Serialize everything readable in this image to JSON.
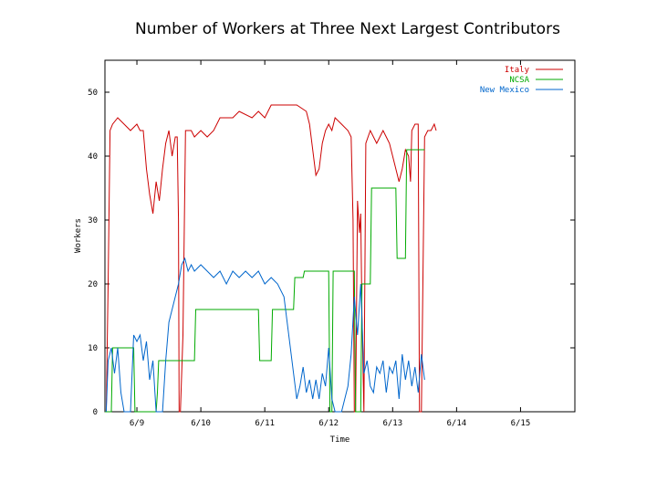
{
  "chart_data": {
    "type": "line",
    "title": "Number of Workers at Three Next Largest Contributors",
    "xlabel": "Time",
    "ylabel": "Workers",
    "ylim": [
      0,
      55
    ],
    "xlim": [
      8.5,
      15.85
    ],
    "yticks": [
      0,
      10,
      20,
      30,
      40,
      50
    ],
    "xticks": [
      {
        "v": 9,
        "label": "6/9"
      },
      {
        "v": 10,
        "label": "6/10"
      },
      {
        "v": 11,
        "label": "6/11"
      },
      {
        "v": 12,
        "label": "6/12"
      },
      {
        "v": 13,
        "label": "6/13"
      },
      {
        "v": 14,
        "label": "6/14"
      },
      {
        "v": 15,
        "label": "6/15"
      }
    ],
    "legend_position": "top-right",
    "grid": false,
    "series": [
      {
        "name": "Italy",
        "color": "#cc0000",
        "points": [
          [
            8.52,
            0
          ],
          [
            8.55,
            20
          ],
          [
            8.58,
            44
          ],
          [
            8.62,
            45
          ],
          [
            8.7,
            46
          ],
          [
            8.8,
            45
          ],
          [
            8.9,
            44
          ],
          [
            9.0,
            45
          ],
          [
            9.05,
            44
          ],
          [
            9.1,
            44
          ],
          [
            9.15,
            38
          ],
          [
            9.2,
            34
          ],
          [
            9.25,
            31
          ],
          [
            9.3,
            36
          ],
          [
            9.35,
            33
          ],
          [
            9.4,
            38
          ],
          [
            9.45,
            42
          ],
          [
            9.5,
            44
          ],
          [
            9.55,
            40
          ],
          [
            9.6,
            43
          ],
          [
            9.63,
            43
          ],
          [
            9.65,
            30
          ],
          [
            9.66,
            0
          ],
          [
            9.68,
            0
          ],
          [
            9.72,
            12
          ],
          [
            9.76,
            44
          ],
          [
            9.85,
            44
          ],
          [
            9.9,
            43
          ],
          [
            10.0,
            44
          ],
          [
            10.1,
            43
          ],
          [
            10.2,
            44
          ],
          [
            10.3,
            46
          ],
          [
            10.5,
            46
          ],
          [
            10.6,
            47
          ],
          [
            10.8,
            46
          ],
          [
            10.9,
            47
          ],
          [
            11.0,
            46
          ],
          [
            11.1,
            48
          ],
          [
            11.3,
            48
          ],
          [
            11.5,
            48
          ],
          [
            11.65,
            47
          ],
          [
            11.7,
            45
          ],
          [
            11.75,
            41
          ],
          [
            11.8,
            37
          ],
          [
            11.85,
            38
          ],
          [
            11.9,
            42
          ],
          [
            11.95,
            44
          ],
          [
            12.0,
            45
          ],
          [
            12.05,
            44
          ],
          [
            12.1,
            46
          ],
          [
            12.2,
            45
          ],
          [
            12.3,
            44
          ],
          [
            12.35,
            43
          ],
          [
            12.38,
            30
          ],
          [
            12.4,
            0
          ],
          [
            12.42,
            0
          ],
          [
            12.45,
            33
          ],
          [
            12.48,
            28
          ],
          [
            12.5,
            31
          ],
          [
            12.52,
            15
          ],
          [
            12.55,
            0
          ],
          [
            12.58,
            42
          ],
          [
            12.65,
            44
          ],
          [
            12.75,
            42
          ],
          [
            12.85,
            44
          ],
          [
            12.9,
            43
          ],
          [
            12.95,
            42
          ],
          [
            13.0,
            40
          ],
          [
            13.05,
            38
          ],
          [
            13.1,
            36
          ],
          [
            13.15,
            38
          ],
          [
            13.2,
            41
          ],
          [
            13.25,
            40
          ],
          [
            13.28,
            36
          ],
          [
            13.3,
            44
          ],
          [
            13.35,
            45
          ],
          [
            13.4,
            45
          ],
          [
            13.42,
            0
          ],
          [
            13.45,
            0
          ],
          [
            13.5,
            43
          ],
          [
            13.55,
            44
          ],
          [
            13.6,
            44
          ],
          [
            13.65,
            45
          ],
          [
            13.68,
            44
          ]
        ]
      },
      {
        "name": "NCSA",
        "color": "#00aa00",
        "points": [
          [
            8.5,
            0
          ],
          [
            8.6,
            0
          ],
          [
            8.62,
            10
          ],
          [
            8.95,
            10
          ],
          [
            8.97,
            0
          ],
          [
            9.3,
            0
          ],
          [
            9.32,
            3
          ],
          [
            9.34,
            8
          ],
          [
            9.9,
            8
          ],
          [
            9.92,
            16
          ],
          [
            10.9,
            16
          ],
          [
            10.92,
            8
          ],
          [
            11.1,
            8
          ],
          [
            11.12,
            16
          ],
          [
            11.45,
            16
          ],
          [
            11.47,
            21
          ],
          [
            11.6,
            21
          ],
          [
            11.62,
            22
          ],
          [
            11.8,
            22
          ],
          [
            11.82,
            22
          ],
          [
            12.0,
            22
          ],
          [
            12.02,
            0
          ],
          [
            12.05,
            0
          ],
          [
            12.07,
            22
          ],
          [
            12.4,
            22
          ],
          [
            12.42,
            0
          ],
          [
            12.5,
            0
          ],
          [
            12.52,
            20
          ],
          [
            12.65,
            20
          ],
          [
            12.67,
            35
          ],
          [
            13.05,
            35
          ],
          [
            13.07,
            24
          ],
          [
            13.2,
            24
          ],
          [
            13.22,
            41
          ],
          [
            13.5,
            41
          ]
        ]
      },
      {
        "name": "New Mexico",
        "color": "#0066cc",
        "points": [
          [
            8.52,
            0
          ],
          [
            8.55,
            8
          ],
          [
            8.6,
            10
          ],
          [
            8.65,
            6
          ],
          [
            8.7,
            10
          ],
          [
            8.75,
            3
          ],
          [
            8.8,
            0
          ],
          [
            8.9,
            0
          ],
          [
            8.95,
            12
          ],
          [
            9.0,
            11
          ],
          [
            9.05,
            12
          ],
          [
            9.1,
            8
          ],
          [
            9.15,
            11
          ],
          [
            9.2,
            5
          ],
          [
            9.25,
            8
          ],
          [
            9.3,
            0
          ],
          [
            9.4,
            0
          ],
          [
            9.45,
            8
          ],
          [
            9.5,
            14
          ],
          [
            9.55,
            16
          ],
          [
            9.6,
            18
          ],
          [
            9.65,
            20
          ],
          [
            9.7,
            23
          ],
          [
            9.75,
            24
          ],
          [
            9.8,
            22
          ],
          [
            9.85,
            23
          ],
          [
            9.9,
            22
          ],
          [
            10.0,
            23
          ],
          [
            10.1,
            22
          ],
          [
            10.2,
            21
          ],
          [
            10.3,
            22
          ],
          [
            10.4,
            20
          ],
          [
            10.5,
            22
          ],
          [
            10.6,
            21
          ],
          [
            10.7,
            22
          ],
          [
            10.8,
            21
          ],
          [
            10.9,
            22
          ],
          [
            11.0,
            20
          ],
          [
            11.1,
            21
          ],
          [
            11.2,
            20
          ],
          [
            11.3,
            18
          ],
          [
            11.35,
            14
          ],
          [
            11.4,
            10
          ],
          [
            11.45,
            6
          ],
          [
            11.5,
            2
          ],
          [
            11.55,
            4
          ],
          [
            11.6,
            7
          ],
          [
            11.65,
            3
          ],
          [
            11.7,
            5
          ],
          [
            11.75,
            2
          ],
          [
            11.8,
            5
          ],
          [
            11.85,
            2
          ],
          [
            11.9,
            6
          ],
          [
            11.95,
            4
          ],
          [
            12.0,
            10
          ],
          [
            12.05,
            2
          ],
          [
            12.1,
            0
          ],
          [
            12.15,
            0
          ],
          [
            12.2,
            0
          ],
          [
            12.25,
            2
          ],
          [
            12.3,
            4
          ],
          [
            12.35,
            9
          ],
          [
            12.4,
            18
          ],
          [
            12.45,
            12
          ],
          [
            12.5,
            20
          ],
          [
            12.55,
            6
          ],
          [
            12.6,
            8
          ],
          [
            12.65,
            4
          ],
          [
            12.7,
            3
          ],
          [
            12.75,
            7
          ],
          [
            12.8,
            6
          ],
          [
            12.85,
            8
          ],
          [
            12.9,
            3
          ],
          [
            12.95,
            7
          ],
          [
            13.0,
            6
          ],
          [
            13.05,
            8
          ],
          [
            13.1,
            2
          ],
          [
            13.15,
            9
          ],
          [
            13.2,
            5
          ],
          [
            13.25,
            8
          ],
          [
            13.3,
            4
          ],
          [
            13.35,
            7
          ],
          [
            13.4,
            3
          ],
          [
            13.45,
            9
          ],
          [
            13.5,
            5
          ]
        ]
      }
    ]
  }
}
